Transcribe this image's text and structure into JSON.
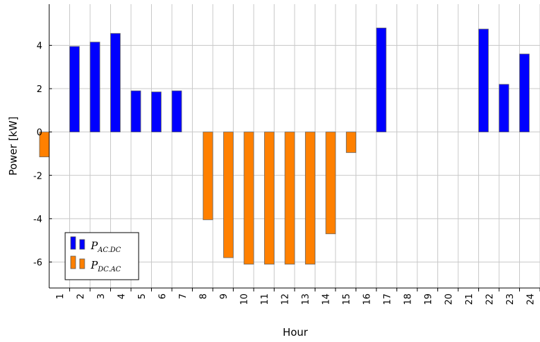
{
  "chart_data": {
    "type": "bar",
    "xlabel": "Hour",
    "ylabel": "Power [kW]",
    "categories": [
      "1",
      "2",
      "3",
      "4",
      "5",
      "6",
      "7",
      "8",
      "9",
      "10",
      "11",
      "12",
      "13",
      "14",
      "15",
      "16",
      "17",
      "18",
      "19",
      "20",
      "21",
      "22",
      "23",
      "24"
    ],
    "ylim": [
      -7.2,
      5.9
    ],
    "yticks": [
      4,
      2,
      0,
      -2,
      -4,
      -6
    ],
    "yticklabels": [
      "4",
      "2",
      "0",
      "-2",
      "-4",
      "-6"
    ],
    "grid": true,
    "legend_position": "bottom-left",
    "series": [
      {
        "name": "P_AC.DC",
        "label_main": "P",
        "label_sub": "AC.DC",
        "color": "#0000ff",
        "offset": "right",
        "values": [
          0,
          3.95,
          4.15,
          4.55,
          1.9,
          1.85,
          1.9,
          0,
          0,
          0,
          0,
          0,
          0,
          0,
          0,
          0,
          4.8,
          0,
          0,
          0,
          0,
          4.75,
          2.2,
          3.6
        ]
      },
      {
        "name": "P_DC.AC",
        "label_main": "P",
        "label_sub": "DC.AC",
        "color": "#ff8000",
        "offset": "left",
        "values": [
          -1.15,
          0,
          0,
          0,
          0,
          0,
          0,
          0,
          -4.05,
          -5.8,
          -6.1,
          -6.1,
          -6.1,
          -6.1,
          -4.7,
          -0.95,
          0,
          0,
          0,
          0,
          0,
          0,
          0,
          0
        ]
      }
    ]
  }
}
